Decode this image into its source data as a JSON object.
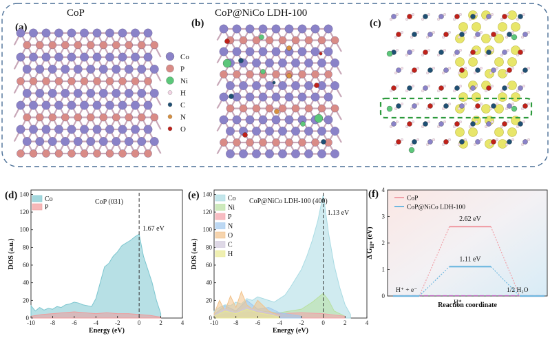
{
  "top": {
    "panels": [
      {
        "letter": "(a)",
        "title": "CoP"
      },
      {
        "letter": "(b)",
        "title": "CoP@NiCo LDH-100"
      },
      {
        "letter": "(c)",
        "title": ""
      }
    ],
    "legend": [
      {
        "label": "Co",
        "color": "#8a82c8"
      },
      {
        "label": "P",
        "color": "#d98b86"
      },
      {
        "label": "Ni",
        "color": "#5cc77a"
      },
      {
        "label": "H",
        "color": "#f4d6e6"
      },
      {
        "label": "C",
        "color": "#1f4f73"
      },
      {
        "label": "N",
        "color": "#d89040"
      },
      {
        "label": "O",
        "color": "#c0211a"
      }
    ]
  },
  "chart_data": [
    {
      "type": "area",
      "letter": "(d)",
      "annotation": "CoP (031)",
      "fermi_label": "1.67 eV",
      "xlabel": "Energy (eV)",
      "ylabel": "DOS (a.u.)",
      "xlim": [
        -10,
        4
      ],
      "ylim": [
        0,
        145
      ],
      "xticks": [
        -10,
        -8,
        -6,
        -4,
        -2,
        0,
        2,
        4
      ],
      "yticks": [
        0,
        20,
        40,
        60,
        80,
        100,
        120,
        140
      ],
      "series": [
        {
          "name": "Co",
          "color": "#7cc6cf",
          "x": [
            -10,
            -9.6,
            -9.2,
            -8.8,
            -8.4,
            -8,
            -7.6,
            -7.2,
            -6.8,
            -6.4,
            -6,
            -5.6,
            -5.2,
            -4.8,
            -4.4,
            -4,
            -3.6,
            -3.2,
            -2.8,
            -2.4,
            -2,
            -1.6,
            -1.2,
            -0.8,
            -0.4,
            0,
            0.4,
            0.8,
            1.2,
            1.6,
            2
          ],
          "y": [
            14,
            8,
            12,
            9,
            11,
            10,
            13,
            12,
            15,
            16,
            18,
            17,
            15,
            14,
            13,
            22,
            40,
            58,
            62,
            70,
            75,
            82,
            85,
            88,
            92,
            95,
            70,
            55,
            40,
            20,
            5
          ]
        },
        {
          "name": "P",
          "color": "#f19a9a",
          "x": [
            -10,
            -9,
            -8,
            -7,
            -6,
            -5,
            -4,
            -3,
            -2,
            -1,
            0,
            1,
            2
          ],
          "y": [
            2,
            4,
            5,
            6,
            7,
            6,
            5,
            6,
            5,
            5,
            4,
            3,
            1
          ]
        }
      ]
    },
    {
      "type": "area",
      "letter": "(e)",
      "annotation": "CoP@NiCo LDH-100 (400)",
      "fermi_label": "1.13 eV",
      "xlabel": "Energy (eV)",
      "ylabel": "DOS (a.u.)",
      "xlim": [
        -10,
        4
      ],
      "ylim": [
        0,
        145
      ],
      "xticks": [
        -10,
        -8,
        -6,
        -4,
        -2,
        0,
        2,
        4
      ],
      "yticks": [
        0,
        20,
        40,
        60,
        80,
        100,
        120,
        140
      ],
      "series": [
        {
          "name": "Co",
          "color": "#a9dbe3",
          "x": [
            -10,
            -9.5,
            -9,
            -8.5,
            -8,
            -7.5,
            -7,
            -6.5,
            -6,
            -5.5,
            -5,
            -4.5,
            -4,
            -3.5,
            -3,
            -2.5,
            -2,
            -1.5,
            -1,
            -0.5,
            0,
            0.5,
            1,
            1.5,
            2,
            2.5
          ],
          "y": [
            8,
            12,
            15,
            14,
            18,
            16,
            22,
            20,
            24,
            22,
            20,
            18,
            22,
            26,
            35,
            45,
            55,
            70,
            88,
            110,
            140,
            95,
            60,
            35,
            15,
            4
          ]
        },
        {
          "name": "Ni",
          "color": "#b8e0a0",
          "x": [
            -10,
            -8,
            -6,
            -4,
            -2,
            -1,
            0,
            0.5,
            1,
            2
          ],
          "y": [
            2,
            5,
            8,
            6,
            10,
            18,
            28,
            20,
            8,
            2
          ]
        },
        {
          "name": "P",
          "color": "#f4a0a8",
          "x": [
            -10,
            -8,
            -6,
            -4,
            -2,
            0,
            2
          ],
          "y": [
            3,
            6,
            7,
            5,
            6,
            5,
            2
          ]
        },
        {
          "name": "N",
          "color": "#a0c8ee",
          "x": [
            -10,
            -9,
            -8,
            -7,
            -6,
            -5,
            -4,
            -3,
            -2
          ],
          "y": [
            4,
            14,
            8,
            20,
            10,
            12,
            6,
            4,
            2
          ]
        },
        {
          "name": "O",
          "color": "#f2c28a",
          "x": [
            -10,
            -9.5,
            -9,
            -8.5,
            -8,
            -7.5,
            -7,
            -6.5,
            -6,
            -5,
            -4
          ],
          "y": [
            5,
            20,
            8,
            25,
            12,
            30,
            15,
            10,
            20,
            8,
            3
          ]
        },
        {
          "name": "C",
          "color": "#d0c8dc",
          "x": [
            -10,
            -9,
            -8,
            -7,
            -6,
            -5,
            -4
          ],
          "y": [
            3,
            10,
            6,
            12,
            8,
            6,
            2
          ]
        },
        {
          "name": "H",
          "color": "#e8e890",
          "x": [
            -10,
            -9,
            -8,
            -7,
            -6,
            -5,
            -4
          ],
          "y": [
            2,
            8,
            5,
            10,
            6,
            4,
            1
          ]
        }
      ]
    },
    {
      "type": "line",
      "letter": "(f)",
      "xlabel": "Reaction coordinate",
      "ylabel": "Δ GH* (eV)",
      "ylabel_main": "Δ G",
      "ylabel_sub": "H*",
      "ylabel_tail": " (eV)",
      "ylim": [
        0,
        4
      ],
      "yticks": [
        0,
        1,
        2,
        3,
        4
      ],
      "states": [
        "H⁺ + e⁻",
        "H*",
        "1/2 H₂O"
      ],
      "series": [
        {
          "name": "CoP",
          "color": "#f0a0a8",
          "values": [
            0,
            2.62,
            0
          ],
          "value_label": "2.62 eV"
        },
        {
          "name": "CoP@NiCo LDH-100",
          "color": "#6fb8e0",
          "values": [
            0,
            1.11,
            0
          ],
          "value_label": "1.11 eV"
        }
      ],
      "reference": {
        "value": 0,
        "color": "#c060c0"
      }
    }
  ]
}
